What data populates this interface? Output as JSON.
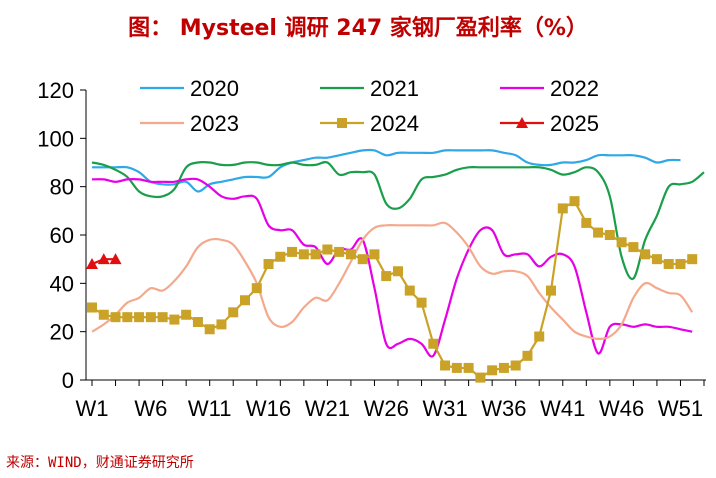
{
  "title": "图： Mysteel 调研 247 家钢厂盈利率（%）",
  "source": "来源：WIND，财通证券研究所",
  "colors": {
    "2020": "#2ea8e6",
    "2021": "#1a9e4a",
    "2022": "#e600e6",
    "2023": "#f4a98c",
    "2024": "#c9a227",
    "2025": "#e01010",
    "title": "#c00000"
  },
  "chart_data": {
    "type": "line",
    "title": "图： Mysteel 调研 247 家钢厂盈利率（%）",
    "xlabel": "",
    "ylabel": "",
    "ylim": [
      0,
      120
    ],
    "yticks": [
      0,
      20,
      40,
      60,
      80,
      100,
      120
    ],
    "xlim": [
      1,
      53
    ],
    "xtick_values": [
      1,
      6,
      11,
      16,
      21,
      26,
      31,
      36,
      41,
      46,
      51
    ],
    "xticks": [
      "W1",
      "W6",
      "W11",
      "W16",
      "W21",
      "W26",
      "W31",
      "W36",
      "W41",
      "W46",
      "W51"
    ],
    "grid": false,
    "legend_position": "top",
    "series": [
      {
        "name": "2020",
        "marker": "none",
        "color": "#2ea8e6",
        "x": [
          1,
          2,
          3,
          4,
          5,
          6,
          7,
          8,
          9,
          10,
          11,
          12,
          13,
          14,
          15,
          16,
          17,
          18,
          19,
          20,
          21,
          22,
          23,
          24,
          25,
          26,
          27,
          28,
          29,
          30,
          31,
          32,
          33,
          34,
          35,
          36,
          37,
          38,
          39,
          40,
          41,
          42,
          43,
          44,
          45,
          46,
          47,
          48,
          49,
          50,
          51
        ],
        "y": [
          88,
          88,
          88,
          88,
          86,
          82,
          81,
          81,
          82,
          78,
          81,
          82,
          83,
          84,
          84,
          84,
          88,
          90,
          91,
          92,
          92,
          93,
          94,
          95,
          95,
          93,
          94,
          94,
          94,
          94,
          95,
          95,
          95,
          95,
          95,
          94,
          93,
          90,
          89,
          89,
          90,
          90,
          91,
          93,
          93,
          93,
          93,
          92,
          90,
          91,
          91
        ]
      },
      {
        "name": "2021",
        "marker": "none",
        "color": "#1a9e4a",
        "x": [
          1,
          2,
          3,
          4,
          5,
          6,
          7,
          8,
          9,
          10,
          11,
          12,
          13,
          14,
          15,
          16,
          17,
          18,
          19,
          20,
          21,
          22,
          23,
          24,
          25,
          26,
          27,
          28,
          29,
          30,
          31,
          32,
          33,
          34,
          35,
          36,
          37,
          38,
          39,
          40,
          41,
          42,
          43,
          44,
          45,
          46,
          47,
          48,
          49,
          50,
          51,
          52,
          53
        ],
        "y": [
          90,
          89,
          87,
          84,
          78,
          76,
          76,
          79,
          88,
          90,
          90,
          89,
          89,
          90,
          90,
          89,
          89,
          90,
          89,
          89,
          90,
          85,
          86,
          86,
          85,
          73,
          71,
          75,
          83,
          84,
          85,
          87,
          88,
          88,
          88,
          88,
          88,
          88,
          88,
          87,
          85,
          86,
          88,
          86,
          76,
          51,
          42,
          58,
          68,
          80,
          81,
          82,
          86
        ]
      },
      {
        "name": "2022",
        "marker": "none",
        "color": "#e600e6",
        "x": [
          1,
          2,
          3,
          4,
          5,
          6,
          7,
          8,
          9,
          10,
          11,
          12,
          13,
          14,
          15,
          16,
          17,
          18,
          19,
          20,
          21,
          22,
          23,
          24,
          25,
          26,
          27,
          28,
          29,
          30,
          31,
          32,
          33,
          34,
          35,
          36,
          37,
          38,
          39,
          40,
          41,
          42,
          43,
          44,
          45,
          46,
          47,
          48,
          49,
          50,
          51,
          52
        ],
        "y": [
          83,
          83,
          82,
          83,
          83,
          82,
          82,
          82,
          83,
          83,
          80,
          76,
          75,
          76,
          75,
          64,
          62,
          62,
          56,
          55,
          48,
          54,
          54,
          58,
          38,
          15,
          15,
          17,
          15,
          10,
          25,
          42,
          54,
          62,
          62,
          52,
          52,
          52,
          47,
          51,
          52,
          47,
          28,
          11,
          22,
          23,
          22,
          23,
          22,
          22,
          21,
          20
        ]
      },
      {
        "name": "2023",
        "marker": "none",
        "color": "#f4a98c",
        "x": [
          1,
          2,
          3,
          4,
          5,
          6,
          7,
          8,
          9,
          10,
          11,
          12,
          13,
          14,
          15,
          16,
          17,
          18,
          19,
          20,
          21,
          22,
          23,
          24,
          25,
          26,
          27,
          28,
          29,
          30,
          31,
          32,
          33,
          34,
          35,
          36,
          37,
          38,
          39,
          40,
          41,
          42,
          43,
          44,
          45,
          46,
          47,
          48,
          49,
          50,
          51,
          52
        ],
        "y": [
          20,
          23,
          27,
          32,
          34,
          38,
          37,
          41,
          47,
          55,
          58,
          58,
          56,
          49,
          40,
          26,
          22,
          24,
          30,
          34,
          33,
          40,
          49,
          58,
          63,
          64,
          64,
          64,
          64,
          64,
          65,
          61,
          55,
          47,
          44,
          45,
          45,
          43,
          36,
          30,
          25,
          20,
          18,
          17,
          18,
          23,
          34,
          40,
          38,
          36,
          35,
          28
        ]
      },
      {
        "name": "2024",
        "marker": "square",
        "color": "#c9a227",
        "x": [
          1,
          2,
          3,
          4,
          5,
          6,
          7,
          8,
          9,
          10,
          11,
          12,
          13,
          14,
          15,
          16,
          17,
          18,
          19,
          20,
          21,
          22,
          23,
          24,
          25,
          26,
          27,
          28,
          29,
          30,
          31,
          32,
          33,
          34,
          35,
          36,
          37,
          38,
          39,
          40,
          41,
          42,
          43,
          44,
          45,
          46,
          47,
          48,
          49,
          50,
          51,
          52
        ],
        "y": [
          30,
          27,
          26,
          26,
          26,
          26,
          26,
          25,
          27,
          24,
          21,
          23,
          28,
          33,
          38,
          48,
          51,
          53,
          52,
          52,
          54,
          53,
          52,
          50,
          52,
          43,
          45,
          37,
          32,
          15,
          6,
          5,
          5,
          1,
          4,
          5,
          6,
          10,
          18,
          37,
          71,
          74,
          65,
          61,
          60,
          57,
          55,
          52,
          50,
          48,
          48,
          50
        ]
      },
      {
        "name": "2025",
        "marker": "triangle",
        "color": "#e01010",
        "x": [
          1,
          2,
          3
        ],
        "y": [
          48,
          50,
          50
        ]
      }
    ]
  }
}
